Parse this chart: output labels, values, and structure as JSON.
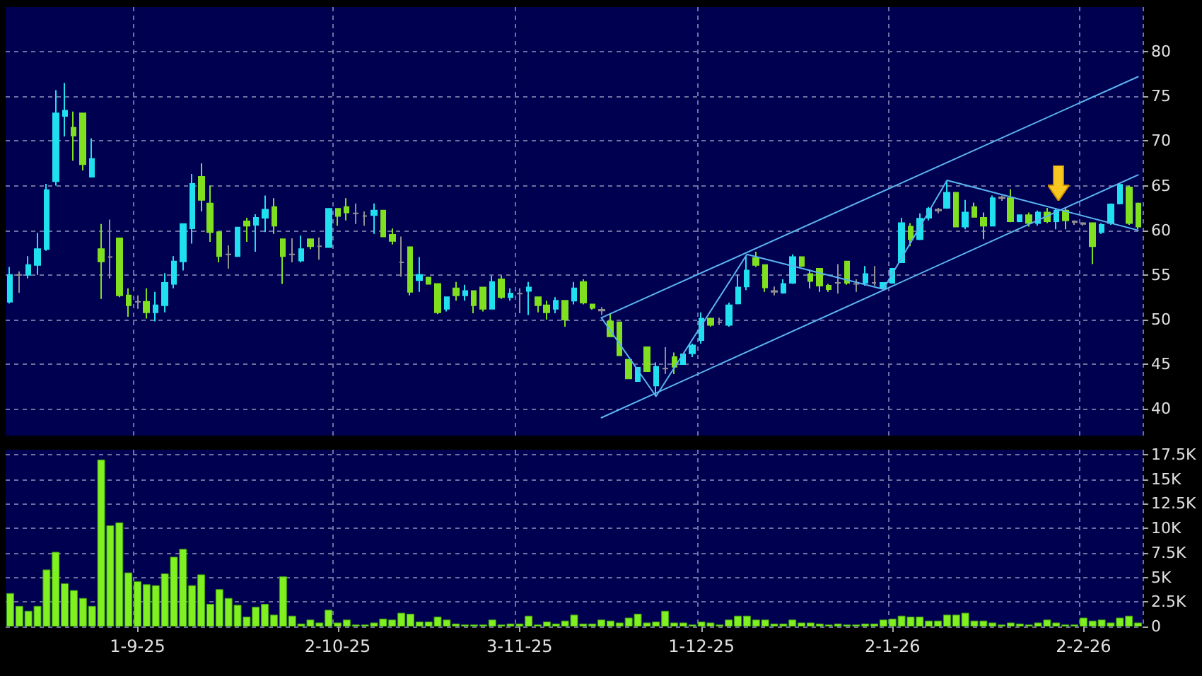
{
  "chart_data": [
    {
      "type": "candlestick",
      "categories": [
        null,
        null,
        null,
        null,
        null,
        null,
        null,
        null,
        null,
        null,
        null,
        null,
        null,
        null,
        null,
        null,
        null,
        null,
        null,
        null,
        null,
        null,
        null,
        null,
        null,
        null,
        null,
        null,
        null,
        null,
        null,
        null,
        null,
        null,
        null,
        null,
        null,
        null,
        null,
        null,
        null,
        null,
        null,
        null,
        null,
        null,
        null,
        null,
        null,
        null,
        null,
        null,
        null,
        null,
        null,
        null,
        null,
        null,
        null,
        null,
        null,
        null,
        null,
        null,
        null,
        null,
        null,
        null,
        null,
        null,
        null,
        null,
        null,
        null,
        null,
        null,
        null,
        null,
        null,
        null,
        null,
        null,
        null,
        null,
        null,
        null,
        null,
        null,
        null,
        null,
        null,
        null,
        null,
        null,
        null,
        null,
        null,
        null,
        null,
        null,
        null,
        null,
        null,
        null,
        null,
        null,
        null,
        null,
        null,
        null,
        null,
        null,
        null,
        null,
        null,
        null,
        null,
        null,
        null,
        null,
        null,
        null,
        null,
        null,
        null
      ],
      "ohlc": [
        [
          52.0,
          55.9,
          51.8,
          55.0
        ],
        [
          55.0,
          55.4,
          53.0,
          55.0
        ],
        [
          55.0,
          57.1,
          54.6,
          56.1
        ],
        [
          56.1,
          59.7,
          55.0,
          57.9
        ],
        [
          57.9,
          65.2,
          57.7,
          64.5
        ],
        [
          65.5,
          75.7,
          65.0,
          73.1
        ],
        [
          72.8,
          76.5,
          70.5,
          73.4
        ],
        [
          71.5,
          73.3,
          67.8,
          70.6
        ],
        [
          73.1,
          73.1,
          66.7,
          67.4
        ],
        [
          66.0,
          70.3,
          66.0,
          68.0
        ],
        [
          57.9,
          60.7,
          52.3,
          56.5
        ],
        [
          57.0,
          61.2,
          54.6,
          57.0
        ],
        [
          59.1,
          59.1,
          52.5,
          52.7
        ],
        [
          52.7,
          53.5,
          50.3,
          51.6
        ],
        [
          52.0,
          52.7,
          51.2,
          52.0
        ],
        [
          52.0,
          53.5,
          50.1,
          50.8
        ],
        [
          50.8,
          53.1,
          49.8,
          51.6
        ],
        [
          51.6,
          55.2,
          50.8,
          54.1
        ],
        [
          54.0,
          57.1,
          53.5,
          56.5
        ],
        [
          56.5,
          60.7,
          55.5,
          60.7
        ],
        [
          60.2,
          66.3,
          58.5,
          65.2
        ],
        [
          66.0,
          67.5,
          62.1,
          63.4
        ],
        [
          63.0,
          65.0,
          58.7,
          59.8
        ],
        [
          59.8,
          59.8,
          56.4,
          57.1
        ],
        [
          57.3,
          58.3,
          55.7,
          57.3
        ],
        [
          57.1,
          60.3,
          57.1,
          60.3
        ],
        [
          61.0,
          61.4,
          58.7,
          60.5
        ],
        [
          60.6,
          61.8,
          57.6,
          61.4
        ],
        [
          61.4,
          63.9,
          59.8,
          62.3
        ],
        [
          62.6,
          63.6,
          59.6,
          60.5
        ],
        [
          59.0,
          59.0,
          54.0,
          57.1
        ],
        [
          57.3,
          59.1,
          56.4,
          57.3
        ],
        [
          56.6,
          59.4,
          56.4,
          57.9
        ],
        [
          59.0,
          59.0,
          57.9,
          58.2
        ],
        [
          58.2,
          59.2,
          56.7,
          58.2
        ],
        [
          58.1,
          62.4,
          58.1,
          62.4
        ],
        [
          62.4,
          62.4,
          60.5,
          61.6
        ],
        [
          62.6,
          63.6,
          61.1,
          62.0
        ],
        [
          61.9,
          63.0,
          60.7,
          61.9
        ],
        [
          61.6,
          62.1,
          60.5,
          61.6
        ],
        [
          61.7,
          63.0,
          59.6,
          62.2
        ],
        [
          62.2,
          62.2,
          59.3,
          59.3
        ],
        [
          59.5,
          60.2,
          58.4,
          58.8
        ],
        [
          56.4,
          59.3,
          54.8,
          56.4
        ],
        [
          58.1,
          58.1,
          52.7,
          53.1
        ],
        [
          54.4,
          57.0,
          53.1,
          55.0
        ],
        [
          54.7,
          54.7,
          54.0,
          54.0
        ],
        [
          54.0,
          54.0,
          50.6,
          50.8
        ],
        [
          51.2,
          52.5,
          50.9,
          52.5
        ],
        [
          53.5,
          54.2,
          52.1,
          52.7
        ],
        [
          52.7,
          53.9,
          52.1,
          53.2
        ],
        [
          53.2,
          53.2,
          50.7,
          51.6
        ],
        [
          53.6,
          53.6,
          50.9,
          51.2
        ],
        [
          51.2,
          54.9,
          51.2,
          54.2
        ],
        [
          54.5,
          54.9,
          52.3,
          52.5
        ],
        [
          52.5,
          53.5,
          52.1,
          52.9
        ],
        [
          52.9,
          53.5,
          50.7,
          52.9
        ],
        [
          53.2,
          54.2,
          50.5,
          53.6
        ],
        [
          52.5,
          52.5,
          50.8,
          51.6
        ],
        [
          51.6,
          52.1,
          50.0,
          50.8
        ],
        [
          51.2,
          52.5,
          50.7,
          52.1
        ],
        [
          52.1,
          52.1,
          49.2,
          50.0
        ],
        [
          52.1,
          54.2,
          51.7,
          53.5
        ],
        [
          54.2,
          54.5,
          51.7,
          51.9
        ],
        [
          51.7,
          51.7,
          51.1,
          51.3
        ],
        [
          51.1,
          51.4,
          50.5,
          51.0
        ],
        [
          49.8,
          50.7,
          48.1,
          48.1
        ],
        [
          49.7,
          49.7,
          46.0,
          46.0
        ],
        [
          45.5,
          45.5,
          43.4,
          43.4
        ],
        [
          43.1,
          44.6,
          43.1,
          44.6
        ],
        [
          46.9,
          46.9,
          44.2,
          44.2
        ],
        [
          42.6,
          45.2,
          41.4,
          44.7
        ],
        [
          44.5,
          46.9,
          43.9,
          44.5
        ],
        [
          45.8,
          46.3,
          43.9,
          44.7
        ],
        [
          45.0,
          46.1,
          45.0,
          46.1
        ],
        [
          46.2,
          47.3,
          45.8,
          47.1
        ],
        [
          47.7,
          50.8,
          47.3,
          50.1
        ],
        [
          50.1,
          50.2,
          49.2,
          49.4
        ],
        [
          49.7,
          50.2,
          49.4,
          49.7
        ],
        [
          49.4,
          51.9,
          49.2,
          51.6
        ],
        [
          51.8,
          55.0,
          51.7,
          53.6
        ],
        [
          53.7,
          57.1,
          53.3,
          55.5
        ],
        [
          56.9,
          57.6,
          55.9,
          56.1
        ],
        [
          56.1,
          56.1,
          53.1,
          53.6
        ],
        [
          53.2,
          53.7,
          52.7,
          53.1
        ],
        [
          53.0,
          54.5,
          52.9,
          54.0
        ],
        [
          54.1,
          57.3,
          54.0,
          57.0
        ],
        [
          57.0,
          57.0,
          55.9,
          56.0
        ],
        [
          55.1,
          55.6,
          53.5,
          54.3
        ],
        [
          55.7,
          55.7,
          53.1,
          53.8
        ],
        [
          53.8,
          54.0,
          53.1,
          53.4
        ],
        [
          54.1,
          56.2,
          52.9,
          54.1
        ],
        [
          56.5,
          56.5,
          53.9,
          54.1
        ],
        [
          54.0,
          54.5,
          53.1,
          54.0
        ],
        [
          54.1,
          56.0,
          53.8,
          55.1
        ],
        [
          54.1,
          56.0,
          53.8,
          54.1
        ],
        [
          53.5,
          54.1,
          53.4,
          54.1
        ],
        [
          54.1,
          55.7,
          54.1,
          55.7
        ],
        [
          56.4,
          61.4,
          56.4,
          60.8
        ],
        [
          60.4,
          60.8,
          58.2,
          59.0
        ],
        [
          59.0,
          61.9,
          58.9,
          61.3
        ],
        [
          61.4,
          62.6,
          61.1,
          62.4
        ],
        [
          62.3,
          62.5,
          61.9,
          62.2
        ],
        [
          62.5,
          65.6,
          62.4,
          64.2
        ],
        [
          64.2,
          64.2,
          60.4,
          60.4
        ],
        [
          60.4,
          63.4,
          60.1,
          62.0
        ],
        [
          62.6,
          63.1,
          61.5,
          61.5
        ],
        [
          61.4,
          62.0,
          59.0,
          60.5
        ],
        [
          60.5,
          63.9,
          60.5,
          63.6
        ],
        [
          63.7,
          63.9,
          63.3,
          63.6
        ],
        [
          63.6,
          64.6,
          60.9,
          61.0
        ],
        [
          61.0,
          61.7,
          60.9,
          61.7
        ],
        [
          61.7,
          62.0,
          60.4,
          60.8
        ],
        [
          60.8,
          62.2,
          60.5,
          62.0
        ],
        [
          62.0,
          62.5,
          60.8,
          61.0
        ],
        [
          61.0,
          62.5,
          60.1,
          62.2
        ],
        [
          62.2,
          62.5,
          60.1,
          61.1
        ],
        [
          61.0,
          61.1,
          60.6,
          60.9
        ],
        [
          60.8,
          60.9,
          60.5,
          60.7
        ],
        [
          60.8,
          60.8,
          56.2,
          58.2
        ],
        [
          59.8,
          60.8,
          59.6,
          60.6
        ],
        [
          60.8,
          63.0,
          60.6,
          62.9
        ],
        [
          63.0,
          65.2,
          62.9,
          65.1
        ],
        [
          64.8,
          65.0,
          60.6,
          60.8
        ],
        [
          63.0,
          63.1,
          60.1,
          60.4
        ]
      ],
      "colors": [
        "#20e0f0",
        "#909090",
        "#20e0f0",
        "#20e0f0",
        "#20e0f0",
        "#20e0f0",
        "#20e0f0",
        "#80e020",
        "#80e020",
        "#20e0f0",
        "#80e020",
        "#909090",
        "#80e020",
        "#80e020",
        "#909090",
        "#80e020",
        "#20e0f0",
        "#20e0f0",
        "#20e0f0",
        "#20e0f0",
        "#20e0f0",
        "#80e020",
        "#80e020",
        "#80e020",
        "#909090",
        "#20e0f0",
        "#80e020",
        "#20e0f0",
        "#20e0f0",
        "#80e020",
        "#80e020",
        "#909090",
        "#20e0f0",
        "#80e020",
        "#909090",
        "#20e0f0",
        "#80e020",
        "#80e020",
        "#909090",
        "#909090",
        "#20e0f0",
        "#80e020",
        "#80e020",
        "#909090",
        "#80e020",
        "#20e0f0",
        "#80e020",
        "#80e020",
        "#20e0f0",
        "#80e020",
        "#20e0f0",
        "#80e020",
        "#80e020",
        "#20e0f0",
        "#80e020",
        "#20e0f0",
        "#909090",
        "#20e0f0",
        "#80e020",
        "#80e020",
        "#20e0f0",
        "#80e020",
        "#20e0f0",
        "#80e020",
        "#80e020",
        "#909090",
        "#80e020",
        "#80e020",
        "#80e020",
        "#20e0f0",
        "#80e020",
        "#20e0f0",
        "#909090",
        "#80e020",
        "#20e0f0",
        "#20e0f0",
        "#20e0f0",
        "#80e020",
        "#909090",
        "#20e0f0",
        "#20e0f0",
        "#20e0f0",
        "#80e020",
        "#80e020",
        "#909090",
        "#20e0f0",
        "#20e0f0",
        "#80e020",
        "#80e020",
        "#80e020",
        "#80e020",
        "#909090",
        "#80e020",
        "#909090",
        "#20e0f0",
        "#909090",
        "#20e0f0",
        "#20e0f0",
        "#20e0f0",
        "#80e020",
        "#20e0f0",
        "#20e0f0",
        "#909090",
        "#20e0f0",
        "#80e020",
        "#20e0f0",
        "#80e020",
        "#80e020",
        "#20e0f0",
        "#909090",
        "#80e020",
        "#20e0f0",
        "#80e020",
        "#20e0f0",
        "#80e020",
        "#20e0f0",
        "#80e020",
        "#909090",
        "#909090",
        "#80e020",
        "#20e0f0",
        "#20e0f0",
        "#20e0f0",
        "#80e020",
        "#80e020"
      ],
      "series": [
        {
          "type": "line",
          "color": "#5ab4f0",
          "values": [
            null,
            null,
            null,
            null,
            null,
            null,
            null,
            null,
            null,
            null,
            null,
            null,
            null,
            null,
            null,
            null,
            null,
            null,
            null,
            null,
            null,
            null,
            null,
            null,
            null,
            null,
            null,
            null,
            null,
            null,
            null,
            null,
            null,
            null,
            null,
            null,
            null,
            null,
            null,
            null,
            null,
            null,
            null,
            null,
            null,
            null,
            null,
            null,
            null,
            null,
            null,
            null,
            null,
            null,
            null,
            null,
            null,
            null,
            null,
            null,
            null,
            null,
            null,
            null,
            null,
            50.2,
            null,
            null,
            null,
            null,
            null,
            null,
            null,
            null,
            null,
            null,
            null,
            null,
            null,
            null,
            null,
            null,
            null,
            null,
            null,
            null,
            null,
            null,
            null,
            null,
            null,
            null,
            null,
            null,
            null,
            null,
            null,
            null,
            null,
            null,
            null,
            null,
            null,
            null,
            null,
            null,
            null,
            null,
            null,
            null,
            null,
            null,
            null,
            null,
            null,
            null,
            null,
            null,
            null,
            null,
            null,
            null,
            null,
            null,
            77.2
          ]
        },
        {
          "type": "line",
          "color": "#5ab4f0",
          "values": [
            null,
            null,
            null,
            null,
            null,
            null,
            null,
            null,
            null,
            null,
            null,
            null,
            null,
            null,
            null,
            null,
            null,
            null,
            null,
            null,
            null,
            null,
            null,
            null,
            null,
            null,
            null,
            null,
            null,
            null,
            null,
            null,
            null,
            null,
            null,
            null,
            null,
            null,
            null,
            null,
            null,
            null,
            null,
            null,
            null,
            null,
            null,
            null,
            null,
            null,
            null,
            null,
            null,
            null,
            null,
            null,
            null,
            null,
            null,
            null,
            null,
            null,
            null,
            null,
            null,
            39.0,
            null,
            null,
            null,
            null,
            null,
            null,
            null,
            null,
            null,
            null,
            null,
            null,
            null,
            null,
            null,
            null,
            null,
            null,
            null,
            null,
            null,
            null,
            null,
            null,
            null,
            null,
            null,
            null,
            null,
            null,
            null,
            null,
            null,
            null,
            null,
            null,
            null,
            null,
            null,
            null,
            null,
            null,
            null,
            null,
            null,
            null,
            null,
            null,
            null,
            null,
            null,
            null,
            null,
            null,
            null,
            null,
            null,
            null,
            66.2
          ]
        },
        {
          "type": "line",
          "color": "#5ab4f0",
          "values": [
            null,
            null,
            null,
            null,
            null,
            null,
            null,
            null,
            null,
            null,
            null,
            null,
            null,
            null,
            null,
            null,
            null,
            null,
            null,
            null,
            null,
            null,
            null,
            null,
            null,
            null,
            null,
            null,
            null,
            null,
            null,
            null,
            null,
            null,
            null,
            null,
            null,
            null,
            null,
            null,
            null,
            null,
            null,
            null,
            null,
            null,
            null,
            null,
            null,
            null,
            null,
            null,
            null,
            null,
            null,
            null,
            null,
            null,
            null,
            null,
            null,
            null,
            null,
            null,
            null,
            50.2,
            null,
            null,
            null,
            null,
            null,
            41.4,
            null,
            null,
            null,
            null,
            null,
            null,
            null,
            null,
            null,
            57.3,
            null,
            null,
            null,
            null,
            null,
            null,
            null,
            null,
            null,
            null,
            null,
            null,
            null,
            null,
            53.4,
            null,
            null,
            null,
            null,
            null,
            null,
            65.6,
            null,
            null,
            null,
            null,
            null,
            null,
            null,
            null,
            null,
            null,
            null,
            null,
            null,
            null,
            null,
            null,
            null,
            null,
            null,
            null,
            60.0
          ]
        }
      ],
      "ylim": [
        37,
        85
      ],
      "yticks": [
        40,
        45,
        50,
        55,
        60,
        65,
        70,
        75,
        80
      ],
      "grid": true,
      "tick_labels": "y"
    },
    {
      "type": "bar",
      "categories": [
        null,
        null,
        null,
        null,
        null,
        null,
        null,
        null,
        null,
        null,
        null,
        null,
        null,
        null,
        "1-9-25",
        null,
        null,
        null,
        null,
        null,
        null,
        null,
        null,
        null,
        null,
        null,
        null,
        null,
        null,
        null,
        null,
        null,
        null,
        null,
        null,
        null,
        "2-10-25",
        null,
        null,
        null,
        null,
        null,
        null,
        null,
        null,
        null,
        null,
        null,
        null,
        null,
        null,
        null,
        null,
        null,
        null,
        null,
        "3-11-25",
        null,
        null,
        null,
        null,
        null,
        null,
        null,
        null,
        null,
        null,
        null,
        null,
        null,
        null,
        null,
        null,
        null,
        null,
        null,
        "1-12-25",
        null,
        null,
        null,
        null,
        null,
        null,
        null,
        null,
        null,
        null,
        null,
        null,
        null,
        null,
        null,
        null,
        null,
        null,
        null,
        null,
        "2-1-26",
        null,
        null,
        null,
        null,
        null,
        null,
        null,
        null,
        null,
        null,
        null,
        null,
        null,
        null,
        null,
        null,
        null,
        null,
        null,
        null,
        "2-2-26",
        null,
        null,
        null,
        null,
        null,
        null
      ],
      "values": [
        3400,
        2100,
        1600,
        2100,
        5800,
        7600,
        4400,
        3700,
        2900,
        2100,
        17000,
        10300,
        10600,
        5500,
        4600,
        4300,
        4200,
        5400,
        7100,
        7900,
        4200,
        5300,
        2300,
        3800,
        2900,
        2200,
        1000,
        2000,
        2300,
        1200,
        5100,
        1100,
        300,
        700,
        400,
        1700,
        400,
        700,
        200,
        200,
        400,
        800,
        700,
        1400,
        1300,
        500,
        500,
        1000,
        700,
        300,
        200,
        200,
        200,
        700,
        200,
        300,
        300,
        1100,
        200,
        500,
        300,
        600,
        1200,
        300,
        300,
        700,
        600,
        400,
        900,
        1300,
        400,
        500,
        1600,
        400,
        400,
        200,
        500,
        400,
        200,
        700,
        1100,
        1100,
        700,
        700,
        300,
        300,
        700,
        400,
        400,
        300,
        200,
        300,
        200,
        200,
        300,
        300,
        700,
        800,
        1100,
        1000,
        1000,
        600,
        600,
        1200,
        1200,
        1400,
        600,
        600,
        400,
        200,
        400,
        300,
        200,
        400,
        700,
        400,
        200,
        200,
        900,
        600,
        700,
        400,
        900,
        1100,
        400
      ],
      "color": "#80f020",
      "ylim": [
        0,
        18000
      ],
      "yticks": [
        0,
        {
          "value": 2500,
          "label": "2.5K"
        },
        {
          "value": 5000,
          "label": "5K"
        },
        {
          "value": 7500,
          "label": "7.5K"
        },
        {
          "value": 10000,
          "label": "10K"
        },
        {
          "value": 12500,
          "label": "12.5K"
        },
        {
          "value": 15000,
          "label": "15K"
        },
        {
          "value": 17500,
          "label": "17.5K"
        }
      ],
      "grid": true
    }
  ]
}
